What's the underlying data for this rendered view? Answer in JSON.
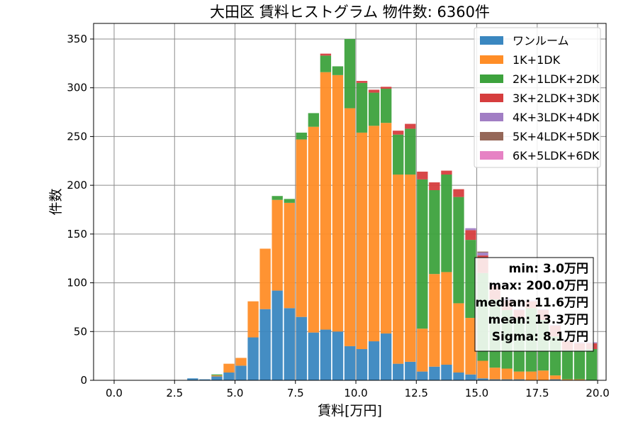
{
  "chart_data": {
    "type": "bar",
    "stacked": true,
    "title": "大田区 賃料ヒストグラム 物件数: 6360件",
    "xlabel": "賃料[万円]",
    "ylabel": "件数",
    "xlim": [
      -0.85,
      20.35
    ],
    "ylim": [
      0,
      366
    ],
    "xticks": [
      0.0,
      2.5,
      5.0,
      7.5,
      10.0,
      12.5,
      15.0,
      17.5,
      20.0
    ],
    "xtick_labels": [
      "0.0",
      "2.5",
      "5.0",
      "7.5",
      "10.0",
      "12.5",
      "15.0",
      "17.5",
      "20.0"
    ],
    "yticks": [
      0,
      50,
      100,
      150,
      200,
      250,
      300,
      350
    ],
    "ytick_labels": [
      "0",
      "50",
      "100",
      "150",
      "200",
      "250",
      "300",
      "350"
    ],
    "grid": true,
    "legend_position": "top-right",
    "bin_width": 0.5,
    "bin_starts": [
      3.0,
      3.5,
      4.0,
      4.5,
      5.0,
      5.5,
      6.0,
      6.5,
      7.0,
      7.5,
      8.0,
      8.5,
      9.0,
      9.5,
      10.0,
      10.5,
      11.0,
      11.5,
      12.0,
      12.5,
      13.0,
      13.5,
      14.0,
      14.5,
      15.0,
      15.5,
      16.0,
      16.5,
      17.0,
      17.5,
      18.0,
      18.5,
      19.0,
      19.5
    ],
    "series": [
      {
        "name": "ワンルーム",
        "color": "#3a87c0",
        "values": [
          2,
          1,
          4,
          8,
          15,
          44,
          73,
          92,
          74,
          65,
          49,
          52,
          50,
          35,
          32,
          40,
          48,
          17,
          19,
          9,
          14,
          16,
          8,
          6,
          2,
          1,
          1,
          1,
          0,
          0,
          1,
          0,
          0,
          0
        ]
      },
      {
        "name": "1K+1DK",
        "color": "#ff8d27",
        "values": [
          0,
          0,
          1,
          9,
          8,
          37,
          62,
          93,
          108,
          182,
          211,
          264,
          263,
          244,
          222,
          221,
          216,
          194,
          192,
          44,
          95,
          95,
          71,
          58,
          18,
          12,
          11,
          8,
          9,
          10,
          4,
          1,
          1,
          0
        ]
      },
      {
        "name": "2K+1LDK+2DK",
        "color": "#3da23d",
        "values": [
          0,
          0,
          1,
          0,
          0,
          0,
          0,
          4,
          4,
          7,
          14,
          17,
          9,
          71,
          51,
          34,
          35,
          41,
          47,
          153,
          86,
          100,
          109,
          80,
          90,
          70,
          60,
          55,
          65,
          52,
          40,
          30,
          30,
          32
        ]
      },
      {
        "name": "3K+2LDK+3DK",
        "color": "#d63d3e",
        "values": [
          0,
          0,
          0,
          0,
          0,
          0,
          0,
          0,
          0,
          0,
          0,
          2,
          0,
          0,
          2,
          3,
          2,
          4,
          5,
          8,
          8,
          4,
          8,
          10,
          18,
          14,
          10,
          8,
          7,
          10,
          11,
          9,
          7,
          6
        ]
      },
      {
        "name": "4K+3LDK+4DK",
        "color": "#a17ec4",
        "values": [
          0,
          0,
          0,
          0,
          0,
          0,
          0,
          0,
          0,
          0,
          0,
          0,
          0,
          0,
          0,
          0,
          0,
          0,
          0,
          0,
          0,
          0,
          0,
          2,
          3,
          2,
          2,
          1,
          1,
          1,
          1,
          1,
          1,
          1
        ]
      },
      {
        "name": "5K+4LDK+5DK",
        "color": "#956758",
        "values": [
          0,
          0,
          0,
          0,
          0,
          0,
          0,
          0,
          0,
          0,
          0,
          0,
          0,
          0,
          0,
          0,
          0,
          0,
          0,
          0,
          0,
          0,
          0,
          0,
          1,
          0,
          0,
          0,
          0,
          0,
          0,
          0,
          0,
          0
        ]
      },
      {
        "name": "6K+5LDK+6DK",
        "color": "#e682c4",
        "values": [
          0,
          0,
          0,
          0,
          0,
          0,
          0,
          0,
          0,
          0,
          0,
          0,
          0,
          0,
          0,
          0,
          0,
          0,
          0,
          0,
          0,
          0,
          0,
          0,
          0,
          0,
          0,
          0,
          0,
          0,
          0,
          0,
          0,
          0
        ]
      }
    ],
    "stats_box": {
      "lines": [
        "min: 3.0万円",
        "max: 200.0万円",
        "median: 11.6万円",
        "mean: 13.3万円",
        "Sigma: 8.1万円"
      ]
    }
  }
}
